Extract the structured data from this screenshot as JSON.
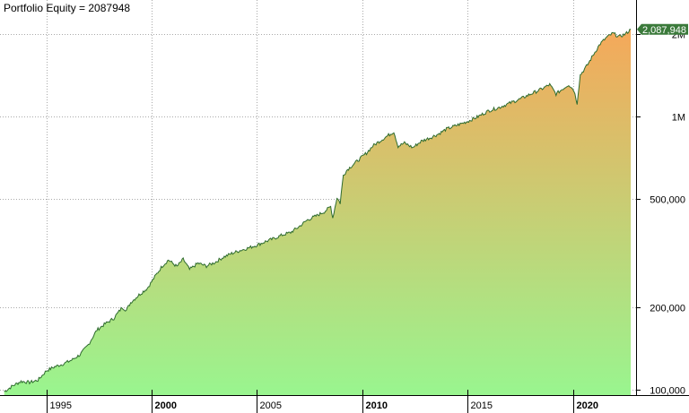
{
  "chart_data": {
    "type": "area",
    "title": "Portfolio Equity = 2087948",
    "y_scale": "log",
    "grid": true,
    "x_range": [
      1992.8,
      2023.0
    ],
    "y_range": [
      96000,
      2300000
    ],
    "x_ticks": [
      {
        "value": 1995,
        "label": "1995",
        "major": false
      },
      {
        "value": 2000,
        "label": "2000",
        "major": true
      },
      {
        "value": 2005,
        "label": "2005",
        "major": false
      },
      {
        "value": 2010,
        "label": "2010",
        "major": true
      },
      {
        "value": 2015,
        "label": "2015",
        "major": false
      },
      {
        "value": 2020,
        "label": "2020",
        "major": true
      }
    ],
    "y_ticks": [
      {
        "value": 100000,
        "label": "100,000"
      },
      {
        "value": 200000,
        "label": "200,000"
      },
      {
        "value": 500000,
        "label": "500,000"
      },
      {
        "value": 1000000,
        "label": "1M"
      },
      {
        "value": 2000000,
        "label": "2M"
      }
    ],
    "last_value_label": "2,087,948",
    "series": [
      {
        "values": [
          [
            1993.0,
            98000
          ],
          [
            1993.4,
            103000
          ],
          [
            1993.8,
            107000
          ],
          [
            1994.2,
            106000
          ],
          [
            1994.6,
            108000
          ],
          [
            1995.0,
            117000
          ],
          [
            1995.4,
            121000
          ],
          [
            1995.8,
            124000
          ],
          [
            1996.2,
            128000
          ],
          [
            1996.6,
            134000
          ],
          [
            1997.0,
            146000
          ],
          [
            1997.4,
            165000
          ],
          [
            1997.8,
            174000
          ],
          [
            1998.2,
            182000
          ],
          [
            1998.6,
            200000
          ],
          [
            1998.8,
            195000
          ],
          [
            1999.0,
            208000
          ],
          [
            1999.4,
            222000
          ],
          [
            1999.8,
            235000
          ],
          [
            2000.2,
            262000
          ],
          [
            2000.5,
            283000
          ],
          [
            2000.8,
            298000
          ],
          [
            2001.2,
            282000
          ],
          [
            2001.5,
            300000
          ],
          [
            2001.8,
            275000
          ],
          [
            2002.2,
            290000
          ],
          [
            2002.6,
            283000
          ],
          [
            2003.0,
            292000
          ],
          [
            2003.4,
            305000
          ],
          [
            2003.8,
            315000
          ],
          [
            2004.2,
            323000
          ],
          [
            2004.6,
            330000
          ],
          [
            2005.0,
            338000
          ],
          [
            2005.4,
            348000
          ],
          [
            2005.8,
            357000
          ],
          [
            2006.2,
            368000
          ],
          [
            2006.6,
            376000
          ],
          [
            2007.0,
            395000
          ],
          [
            2007.4,
            418000
          ],
          [
            2007.8,
            432000
          ],
          [
            2008.2,
            448000
          ],
          [
            2008.5,
            468000
          ],
          [
            2008.6,
            425000
          ],
          [
            2008.8,
            505000
          ],
          [
            2008.95,
            482000
          ],
          [
            2009.1,
            610000
          ],
          [
            2009.3,
            640000
          ],
          [
            2009.6,
            670000
          ],
          [
            2009.9,
            702000
          ],
          [
            2010.2,
            735000
          ],
          [
            2010.5,
            780000
          ],
          [
            2010.8,
            810000
          ],
          [
            2011.2,
            850000
          ],
          [
            2011.5,
            880000
          ],
          [
            2011.7,
            778000
          ],
          [
            2012.0,
            800000
          ],
          [
            2012.4,
            770000
          ],
          [
            2012.8,
            812000
          ],
          [
            2013.2,
            835000
          ],
          [
            2013.6,
            862000
          ],
          [
            2014.0,
            900000
          ],
          [
            2014.5,
            930000
          ],
          [
            2015.0,
            960000
          ],
          [
            2015.5,
            1000000
          ],
          [
            2016.0,
            1050000
          ],
          [
            2016.5,
            1080000
          ],
          [
            2017.0,
            1120000
          ],
          [
            2017.5,
            1160000
          ],
          [
            2018.0,
            1210000
          ],
          [
            2018.5,
            1260000
          ],
          [
            2018.9,
            1310000
          ],
          [
            2019.2,
            1210000
          ],
          [
            2019.5,
            1260000
          ],
          [
            2019.8,
            1310000
          ],
          [
            2020.05,
            1250000
          ],
          [
            2020.2,
            1120000
          ],
          [
            2020.35,
            1420000
          ],
          [
            2020.7,
            1550000
          ],
          [
            2021.0,
            1700000
          ],
          [
            2021.3,
            1850000
          ],
          [
            2021.6,
            1950000
          ],
          [
            2021.9,
            2020000
          ],
          [
            2022.2,
            1960000
          ],
          [
            2022.5,
            2010000
          ],
          [
            2022.75,
            2087948
          ]
        ]
      }
    ],
    "colors": {
      "line": "#2e6b2e",
      "fill_top": "#f5a85a",
      "fill_bottom": "#99f58f",
      "grid": "#a9a9a9",
      "last_label_bg": "#3b7a3b"
    }
  }
}
